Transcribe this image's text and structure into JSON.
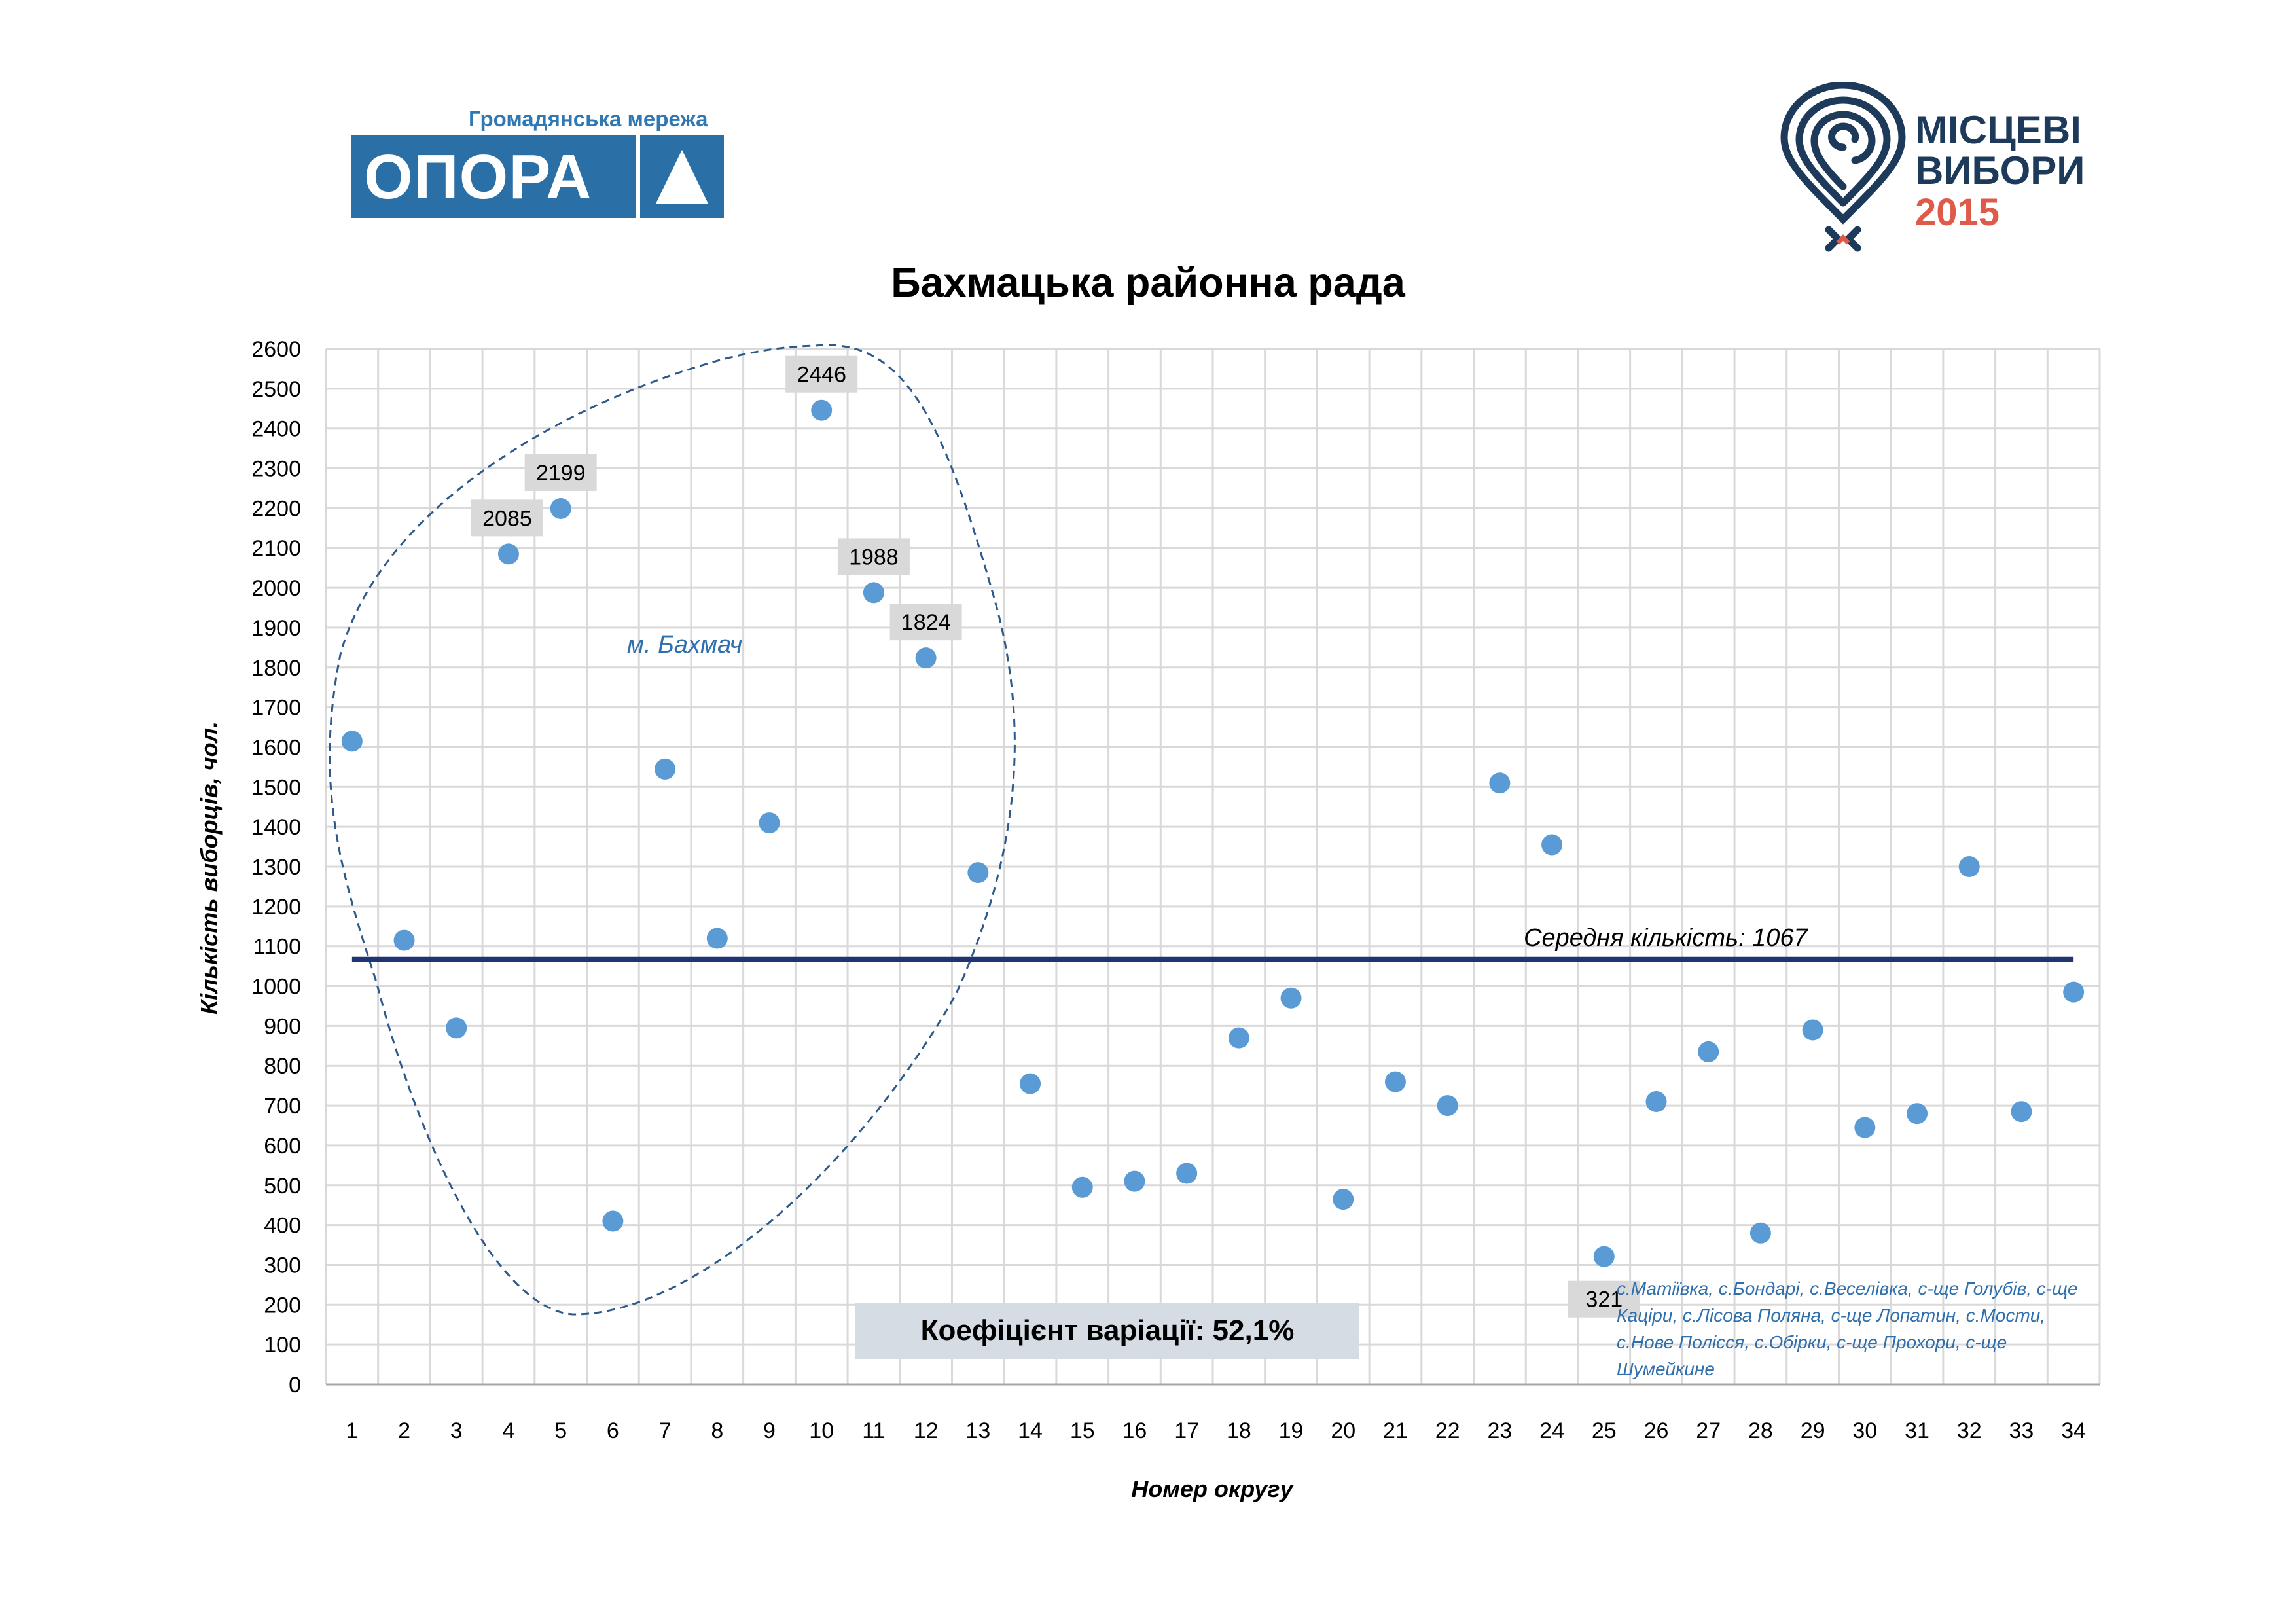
{
  "header": {
    "opora_tagline": "Громадянська мережа",
    "opora_name": "ОПОРА",
    "mv_line1": "МІСЦЕВІ",
    "mv_line2": "ВИБОРИ",
    "mv_year": "2015"
  },
  "colors": {
    "point": "#5b9bd5",
    "mean_line": "#1f3470",
    "grid": "#d9d9d9",
    "annotation": "#2f6fad",
    "label_bg": "#d9d9d9"
  },
  "chart_data": {
    "type": "scatter",
    "title": "Бахмацька районна рада",
    "xlabel": "Номер округу",
    "ylabel": "Кількість виборців, чол.",
    "ylim": [
      0,
      2600
    ],
    "ytick_step": 100,
    "x": [
      1,
      2,
      3,
      4,
      5,
      6,
      7,
      8,
      9,
      10,
      11,
      12,
      13,
      14,
      15,
      16,
      17,
      18,
      19,
      20,
      21,
      22,
      23,
      24,
      25,
      26,
      27,
      28,
      29,
      30,
      31,
      32,
      33,
      34
    ],
    "y": [
      1615,
      1115,
      895,
      2085,
      2199,
      410,
      1545,
      1120,
      1410,
      2446,
      1988,
      1824,
      1285,
      755,
      495,
      510,
      530,
      870,
      970,
      465,
      760,
      700,
      1510,
      1355,
      321,
      710,
      835,
      380,
      890,
      645,
      680,
      1300,
      685,
      985
    ],
    "labeled_points": [
      {
        "x": 4,
        "label": "2085"
      },
      {
        "x": 5,
        "label": "2199"
      },
      {
        "x": 10,
        "label": "2446"
      },
      {
        "x": 11,
        "label": "1988"
      },
      {
        "x": 12,
        "label": "1824"
      },
      {
        "x": 25,
        "label": "321"
      }
    ],
    "mean": 1067,
    "mean_label": "Середня кількість: 1067",
    "cluster_label": "м. Бахмач",
    "villages_note_lines": [
      "с.Матіївка, с.Бондарі, с.Веселівка, с-ще Голубів, с-ще",
      "Каціри, с.Лісова Поляна, с-ще Лопатин, с.Мости,",
      "с.Нове Полісся, с.Обірки, с-ще Прохори, с-ще",
      "Шумейкине"
    ],
    "cv_label": "Коефіцієнт варіації:  52,1%"
  }
}
